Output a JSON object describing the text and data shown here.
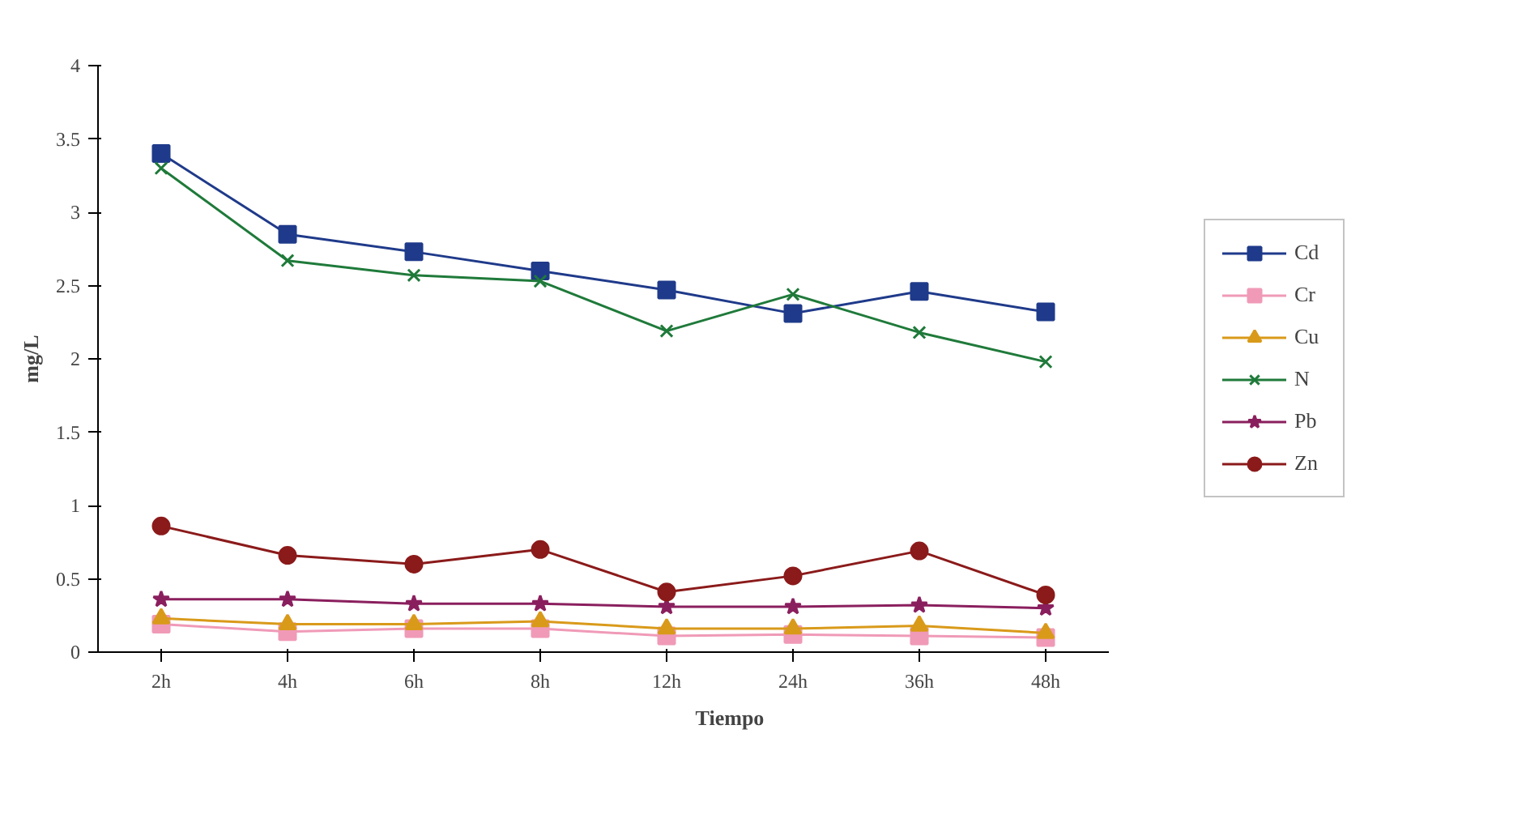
{
  "chart_data": {
    "type": "line",
    "xlabel": "Tiempo",
    "ylabel": "mg/L",
    "categories": [
      "2h",
      "4h",
      "6h",
      "8h",
      "12h",
      "24h",
      "36h",
      "48h"
    ],
    "ylim": [
      0,
      4
    ],
    "yticks": [
      0,
      0.5,
      1,
      1.5,
      2,
      2.5,
      3,
      3.5,
      4
    ],
    "grid": false,
    "legend": "right",
    "line_style": "solid",
    "series": [
      {
        "name": "Cd",
        "color": "#1f3a8a",
        "marker": "square",
        "values": [
          3.4,
          2.85,
          2.73,
          2.6,
          2.47,
          2.31,
          2.46,
          2.32
        ]
      },
      {
        "name": "Cr",
        "color": "#f09ab8",
        "marker": "square",
        "values": [
          0.19,
          0.14,
          0.16,
          0.16,
          0.11,
          0.12,
          0.11,
          0.1
        ]
      },
      {
        "name": "Cu",
        "color": "#d99a1a",
        "marker": "triangle",
        "values": [
          0.23,
          0.19,
          0.19,
          0.21,
          0.16,
          0.16,
          0.18,
          0.13
        ]
      },
      {
        "name": "N",
        "color": "#1f7a3a",
        "marker": "cross",
        "values": [
          3.3,
          2.67,
          2.57,
          2.53,
          2.19,
          2.44,
          2.18,
          1.98
        ]
      },
      {
        "name": "Pb",
        "color": "#8a1f5e",
        "marker": "star",
        "values": [
          0.36,
          0.36,
          0.33,
          0.33,
          0.31,
          0.31,
          0.32,
          0.3
        ]
      },
      {
        "name": "Zn",
        "color": "#8b1a1a",
        "marker": "circle",
        "values": [
          0.86,
          0.66,
          0.6,
          0.7,
          0.41,
          0.52,
          0.69,
          0.39
        ]
      }
    ]
  }
}
